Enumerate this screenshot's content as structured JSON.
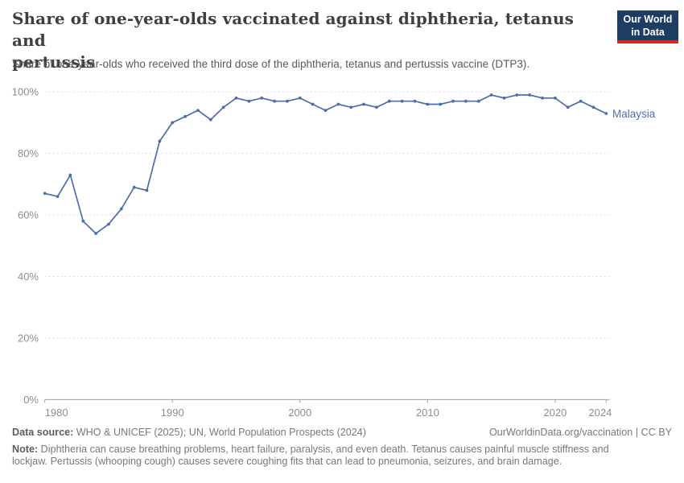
{
  "header": {
    "title_line1": "Share of one-year-olds vaccinated against diphtheria, tetanus and",
    "title_line2": "pertussis",
    "subtitle": "Share of one-year-olds who received the third dose of the diphtheria, tetanus and pertussis vaccine (DTP3).",
    "logo": {
      "line1": "Our World",
      "line2": "in Data"
    }
  },
  "chart_data": {
    "type": "line",
    "title": "Share of one-year-olds vaccinated against diphtheria, tetanus and pertussis",
    "subtitle": "Share of one-year-olds who received the third dose of the diphtheria, tetanus and pertussis vaccine (DTP3).",
    "xlabel": "",
    "ylabel": "",
    "xlim": [
      1980,
      2024
    ],
    "ylim": [
      0,
      100
    ],
    "grid": "horizontal-dashed",
    "legend_position": "end-of-line",
    "x": [
      1980,
      1981,
      1982,
      1983,
      1984,
      1985,
      1986,
      1987,
      1988,
      1989,
      1990,
      1991,
      1992,
      1993,
      1994,
      1995,
      1996,
      1997,
      1998,
      1999,
      2000,
      2001,
      2002,
      2003,
      2004,
      2005,
      2006,
      2007,
      2008,
      2009,
      2010,
      2011,
      2012,
      2013,
      2014,
      2015,
      2016,
      2017,
      2018,
      2019,
      2020,
      2021,
      2022,
      2023,
      2024
    ],
    "series": [
      {
        "name": "Malaysia",
        "color": "#4c6ea9",
        "values": [
          67,
          66,
          73,
          58,
          54,
          57,
          62,
          69,
          68,
          84,
          90,
          92,
          94,
          91,
          95,
          98,
          97,
          98,
          97,
          97,
          98,
          96,
          94,
          96,
          95,
          96,
          95,
          97,
          97,
          97,
          96,
          96,
          97,
          97,
          97,
          99,
          98,
          99,
          99,
          98,
          98,
          95,
          97,
          95,
          93
        ]
      }
    ],
    "y_ticks": [
      {
        "value": 0,
        "label": "0%"
      },
      {
        "value": 20,
        "label": "20%"
      },
      {
        "value": 40,
        "label": "40%"
      },
      {
        "value": 60,
        "label": "60%"
      },
      {
        "value": 80,
        "label": "80%"
      },
      {
        "value": 100,
        "label": "100%"
      }
    ],
    "x_ticks": [
      {
        "value": 1980,
        "label": "1980",
        "align": "start"
      },
      {
        "value": 1990,
        "label": "1990",
        "align": "middle"
      },
      {
        "value": 2000,
        "label": "2000",
        "align": "middle"
      },
      {
        "value": 2010,
        "label": "2010",
        "align": "middle"
      },
      {
        "value": 2020,
        "label": "2020",
        "align": "middle"
      },
      {
        "value": 2024,
        "label": "2024",
        "align": "end"
      }
    ]
  },
  "footer": {
    "source_label": "Data source:",
    "source_text": " WHO & UNICEF (2025); UN, World Population Prospects (2024)",
    "link_text": "OurWorldinData.org/vaccination",
    "license_text": " | CC BY",
    "note_label": "Note:",
    "note_text": " Diphtheria can cause breathing problems, heart failure, paralysis, and even death. Tetanus causes painful muscle stiffness and lockjaw. Pertussis (whooping cough) causes severe coughing fits that can lead to pneumonia, seizures, and brain damage."
  },
  "colors": {
    "series_blue": "#4c6ea9",
    "logo_navy": "#1d3d63",
    "logo_red": "#d42b21",
    "gridline": "#dedede",
    "axis": "#9e9e9e",
    "tick_label": "#8e8e8e"
  }
}
